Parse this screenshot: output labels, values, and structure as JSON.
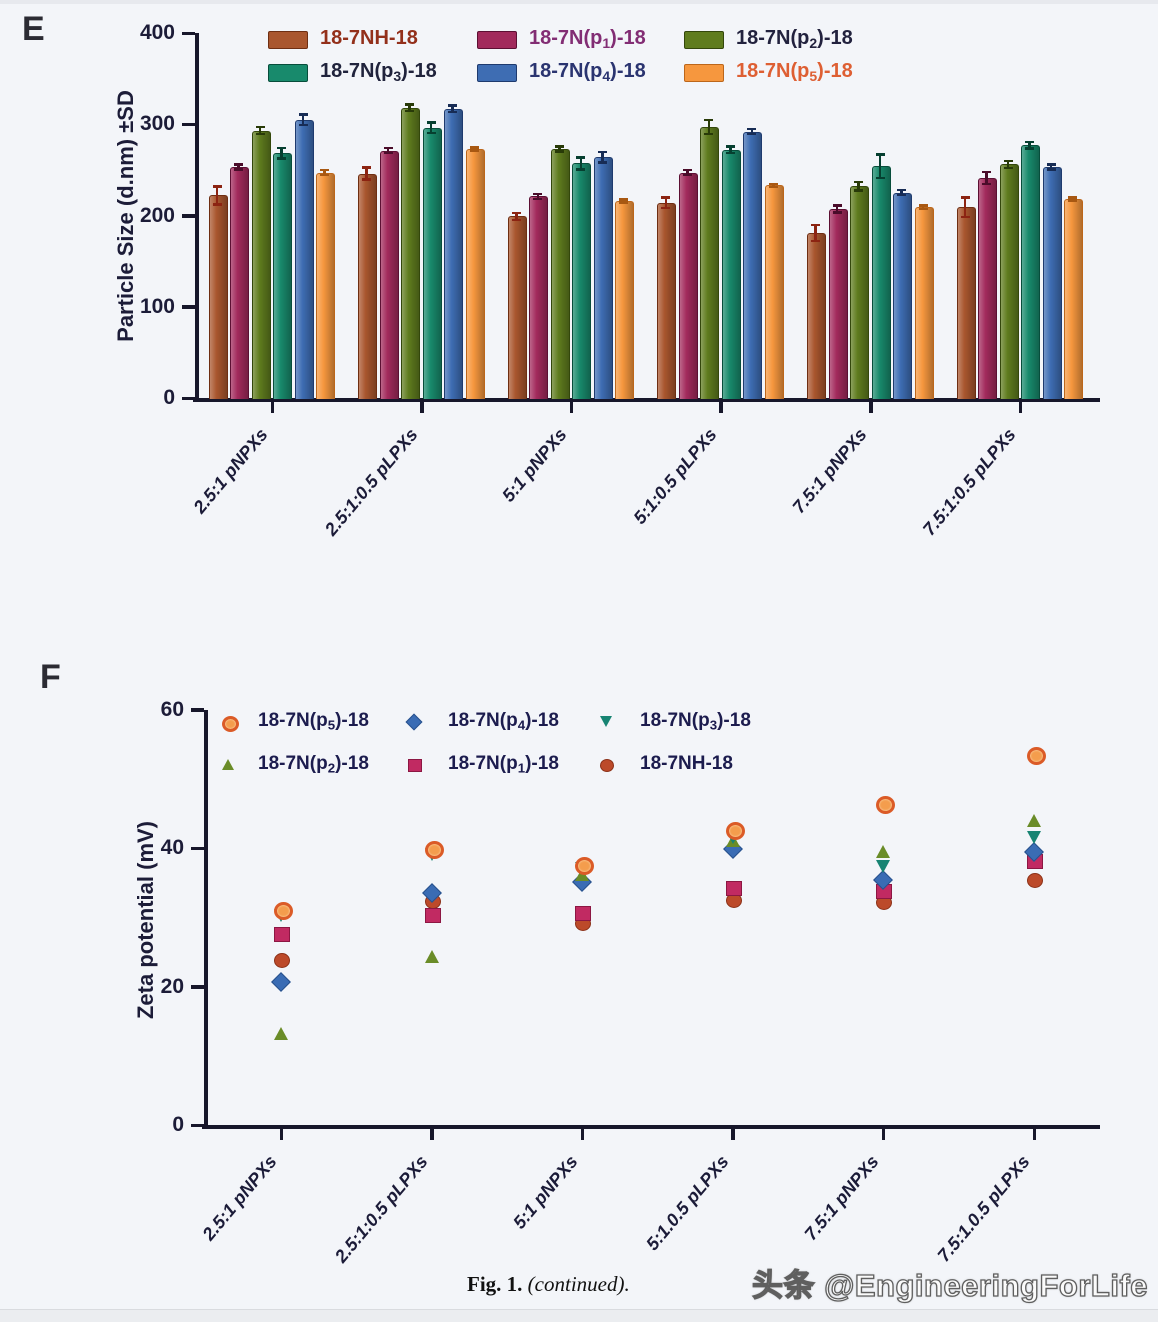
{
  "panel_e": {
    "letter": "E"
  },
  "panel_f": {
    "letter": "F"
  },
  "caption": {
    "fig_label": "Fig. 1.",
    "continued_label": "(continued)."
  },
  "watermark": {
    "text": "头条 @EngineeringForLife"
  },
  "chart_data": [
    {
      "type": "bar",
      "panel": "E",
      "title": "",
      "xlabel": "",
      "ylabel": "Particle Size (d.nm)  ±SD",
      "ylim": [
        0,
        400
      ],
      "yticks": [
        0,
        100,
        200,
        300,
        400
      ],
      "grid": false,
      "legend_position": "top",
      "categories": [
        "2.5:1 pNPXs",
        "2.5:1:0.5 pLPXs",
        "5:1 pNPXs",
        "5:1:0.5 pLPXs",
        "7.5:1 pNPXs",
        "7.5:1:0.5 pLPXs"
      ],
      "series": [
        {
          "name": "18-7NH-18",
          "label_pre": "18-7NH-18",
          "label_sub": "",
          "label_post": "",
          "color": "#A9562E",
          "edge": "#6E2E12",
          "error_color": "#8C2412",
          "text_color": "#93301B",
          "values": [
            222,
            246,
            199,
            214,
            181,
            209
          ],
          "sd": [
            10,
            7,
            4,
            6,
            9,
            11
          ]
        },
        {
          "name": "18-7N(p1)-18",
          "label_pre": "18-7N(p",
          "label_sub": "1",
          "label_post": ")-18",
          "color": "#A22A5C",
          "edge": "#5C0F33",
          "error_color": "#4A0C2A",
          "text_color": "#822D74",
          "values": [
            253,
            271,
            221,
            247,
            207,
            241
          ],
          "sd": [
            3,
            3,
            3,
            3,
            4,
            7
          ]
        },
        {
          "name": "18-7N(p2)-18",
          "label_pre": "18-7N(p",
          "label_sub": "2",
          "label_post": ")-18",
          "color": "#5F7C1E",
          "edge": "#33470B",
          "error_color": "#283A08",
          "text_color": "#22223E",
          "values": [
            293,
            318,
            273,
            297,
            232,
            256
          ],
          "sd": [
            4,
            4,
            3,
            8,
            5,
            4
          ]
        },
        {
          "name": "18-7N(p3)-18",
          "label_pre": "18-7N(p",
          "label_sub": "3",
          "label_post": ")-18",
          "color": "#188A6C",
          "edge": "#074D3B",
          "error_color": "#063F30",
          "text_color": "#20233C",
          "values": [
            268,
            296,
            257,
            272,
            254,
            277
          ],
          "sd": [
            6,
            6,
            7,
            4,
            13,
            4
          ]
        },
        {
          "name": "18-7N(p4)-18",
          "label_pre": "18-7N(p",
          "label_sub": "4",
          "label_post": ")-18",
          "color": "#3E6DB3",
          "edge": "#1E3A6E",
          "error_color": "#172C55",
          "text_color": "#2A3470",
          "values": [
            305,
            317,
            264,
            292,
            225,
            253
          ],
          "sd": [
            6,
            4,
            6,
            3,
            3,
            3
          ]
        },
        {
          "name": "18-7N(p5)-18",
          "label_pre": "18-7N(p",
          "label_sub": "5",
          "label_post": ")-18",
          "color": "#F6973E",
          "edge": "#BC661A",
          "error_color": "#A85812",
          "text_color": "#DE5F33",
          "values": [
            247,
            273,
            216,
            233,
            209,
            218
          ],
          "sd": [
            3,
            2,
            2,
            2,
            2,
            2
          ]
        }
      ]
    },
    {
      "type": "scatter",
      "panel": "F",
      "title": "",
      "xlabel": "",
      "ylabel": "Zeta potential (mV)",
      "ylim": [
        0,
        60
      ],
      "yticks": [
        0,
        20,
        40,
        60
      ],
      "grid": false,
      "legend_position": "top-inside",
      "categories": [
        "2.5:1 pNPXs",
        "2.5:1:0.5 pLPXs",
        "5:1 pNPXs",
        "5:1.0.5 pLPXs",
        "7.5:1 pNPXs",
        "7.5:1.0.5 pLPXs"
      ],
      "series": [
        {
          "name": "18-7N(p5)-18",
          "label_pre": "18-7N(p",
          "label_sub": "5",
          "label_post": ")-18",
          "marker": "circle-open",
          "color": "#F49D4D",
          "edge": "#DB5B27",
          "text_color": "#1C1C4E",
          "z": 6,
          "values": [
            31.2,
            40.0,
            37.8,
            42.8,
            46.6,
            53.7
          ]
        },
        {
          "name": "18-7N(p4)-18",
          "label_pre": "18-7N(p",
          "label_sub": "4",
          "label_post": ")-18",
          "marker": "diamond",
          "color": "#3A6CB4",
          "edge": "#27508C",
          "text_color": "#1C1C4E",
          "z": 3,
          "values": [
            20.7,
            33.6,
            35.2,
            39.9,
            35.4,
            39.5
          ]
        },
        {
          "name": "18-7N(p3)-18",
          "label_pre": "18-7N(p",
          "label_sub": "3",
          "label_post": ")-18",
          "marker": "triangle-down",
          "color": "#178473",
          "edge": "#0B5C4F",
          "text_color": "#1C1C4E",
          "z": 5,
          "values": [
            30.2,
            39.0,
            37.0,
            41.5,
            37.3,
            41.5
          ]
        },
        {
          "name": "18-7N(p2)-18",
          "label_pre": "18-7N(p",
          "label_sub": "2",
          "label_post": ")-18",
          "marker": "triangle-up",
          "color": "#6A8C28",
          "edge": "#49611A",
          "text_color": "#1C1C4E",
          "z": 4,
          "values": [
            13.1,
            24.3,
            36.2,
            41.0,
            39.5,
            44.0
          ]
        },
        {
          "name": "18-7N(p1)-18",
          "label_pre": "18-7N(p",
          "label_sub": "1",
          "label_post": ")-18",
          "marker": "square",
          "color": "#C12A62",
          "edge": "#8C1743",
          "text_color": "#1C1C4E",
          "z": 2,
          "values": [
            27.6,
            30.3,
            30.7,
            34.2,
            33.8,
            38.2
          ]
        },
        {
          "name": "18-7NH-18",
          "label_pre": "18-7NH-18",
          "label_sub": "",
          "label_post": "",
          "marker": "circle",
          "color": "#BC4A2A",
          "edge": "#8C3118",
          "text_color": "#1C1C4E",
          "z": 1,
          "values": [
            23.8,
            32.4,
            29.2,
            32.5,
            32.2,
            35.4
          ]
        }
      ]
    }
  ]
}
